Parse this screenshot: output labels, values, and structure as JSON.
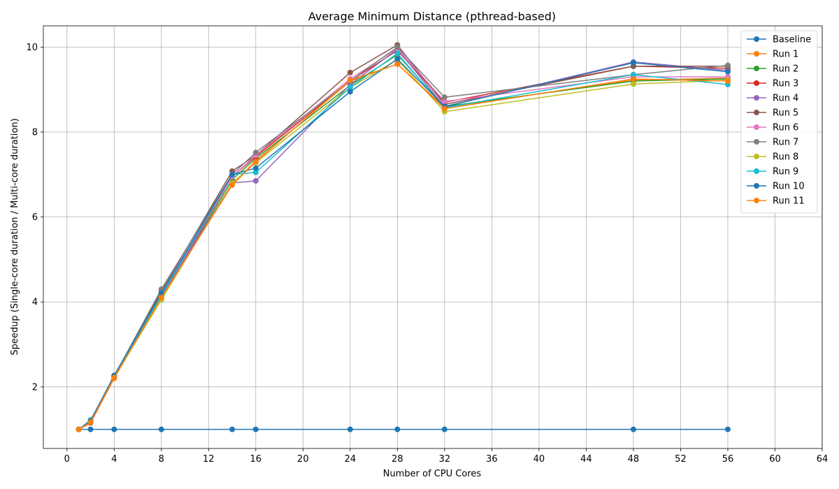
{
  "chart_data": {
    "type": "line",
    "title": "Average Minimum Distance (pthread-based)",
    "xlabel": "Number of CPU Cores",
    "ylabel": "Speedup (Single-core duration / Multi-core duration)",
    "xlim": [
      -2,
      64
    ],
    "ylim": [
      0.55,
      10.5
    ],
    "xticks": [
      0,
      4,
      8,
      12,
      16,
      20,
      24,
      28,
      32,
      36,
      40,
      44,
      48,
      52,
      56,
      60,
      64
    ],
    "yticks": [
      2,
      4,
      6,
      8,
      10
    ],
    "grid": true,
    "legend_position": "top-right",
    "x": [
      1,
      2,
      4,
      8,
      14,
      16,
      24,
      28,
      32,
      48,
      56
    ],
    "series": [
      {
        "name": "Baseline",
        "color": "#1f77b4",
        "values": [
          1.0,
          1.0,
          1.0,
          1.0,
          1.0,
          1.0,
          1.0,
          1.0,
          1.0,
          1.0,
          1.0
        ]
      },
      {
        "name": "Run 1",
        "color": "#ff7f0e",
        "values": [
          1.0,
          1.15,
          2.2,
          4.1,
          6.77,
          7.32,
          9.2,
          9.6,
          8.58,
          9.22,
          9.27
        ]
      },
      {
        "name": "Run 2",
        "color": "#2ca02c",
        "values": [
          1.0,
          1.18,
          2.22,
          4.12,
          6.88,
          7.38,
          9.1,
          9.82,
          8.6,
          9.2,
          9.25
        ]
      },
      {
        "name": "Run 3",
        "color": "#d62728",
        "values": [
          1.0,
          1.16,
          2.22,
          4.12,
          6.95,
          7.42,
          9.2,
          9.92,
          8.7,
          9.55,
          9.5
        ]
      },
      {
        "name": "Run 4",
        "color": "#9467bd",
        "values": [
          1.0,
          1.17,
          2.23,
          4.15,
          6.8,
          6.85,
          9.12,
          9.95,
          8.6,
          9.65,
          9.45
        ]
      },
      {
        "name": "Run 5",
        "color": "#8c564b",
        "values": [
          1.0,
          1.18,
          2.25,
          4.25,
          7.08,
          7.45,
          9.4,
          10.05,
          8.65,
          9.55,
          9.55
        ]
      },
      {
        "name": "Run 6",
        "color": "#e377c2",
        "values": [
          1.0,
          1.17,
          2.23,
          4.15,
          6.95,
          7.45,
          9.25,
          9.97,
          8.72,
          9.3,
          9.3
        ]
      },
      {
        "name": "Run 7",
        "color": "#7f7f7f",
        "values": [
          1.0,
          1.18,
          2.25,
          4.3,
          7.0,
          7.52,
          9.2,
          10.0,
          8.82,
          9.35,
          9.57
        ]
      },
      {
        "name": "Run 8",
        "color": "#bcbd22",
        "values": [
          1.0,
          1.2,
          2.22,
          4.05,
          6.8,
          7.28,
          9.05,
          9.7,
          8.48,
          9.13,
          9.22
        ]
      },
      {
        "name": "Run 9",
        "color": "#17becf",
        "values": [
          1.0,
          1.22,
          2.25,
          4.15,
          7.0,
          7.05,
          9.05,
          9.85,
          8.57,
          9.35,
          9.12
        ]
      },
      {
        "name": "Run 10",
        "color": "#1f77b4",
        "values": [
          1.0,
          1.2,
          2.27,
          4.2,
          7.0,
          7.15,
          8.95,
          9.72,
          8.6,
          9.63,
          9.42
        ]
      },
      {
        "name": "Run 11",
        "color": "#ff7f0e",
        "values": [
          1.0,
          1.17,
          2.22,
          4.1,
          6.75,
          7.3,
          9.22,
          9.6,
          8.55,
          9.25,
          9.2
        ]
      }
    ]
  }
}
